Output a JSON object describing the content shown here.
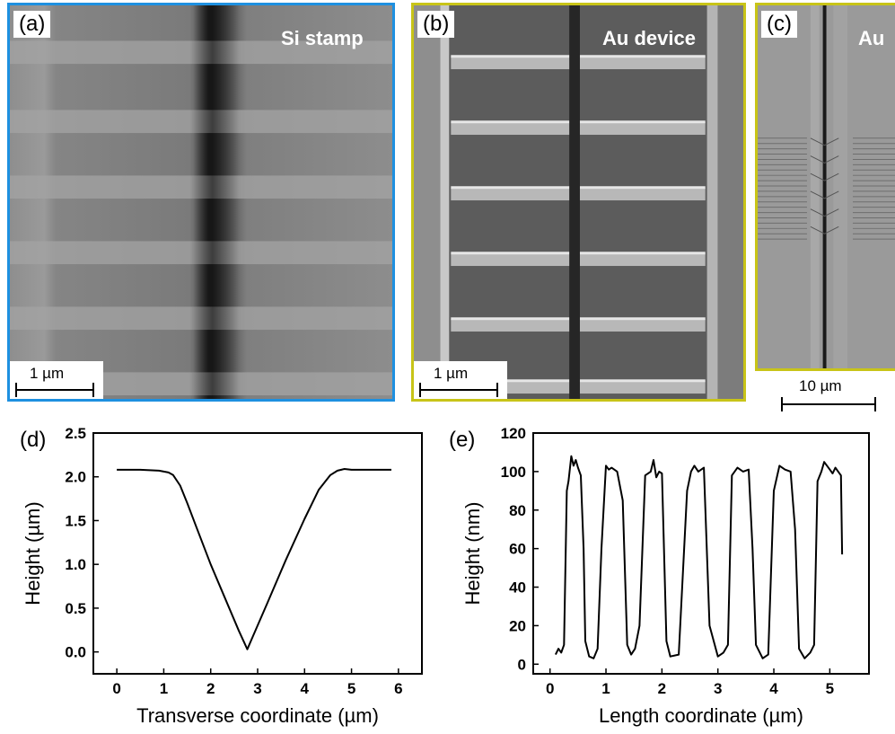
{
  "panels": {
    "a": {
      "label": "(a)",
      "title": "Si stamp",
      "scalebar": "1 µm",
      "border": "#1e90e0"
    },
    "b": {
      "label": "(b)",
      "title": "Au device",
      "scalebar": "1 µm",
      "border": "#c8c418"
    },
    "c": {
      "label": "(c)",
      "title": "Au",
      "scalebar": "10 µm",
      "border": "#c8c418"
    }
  },
  "chart_data": [
    {
      "panel_label": "(d)",
      "type": "line",
      "xlabel": "Transverse coordinate (µm)",
      "ylabel": "Height (µm)",
      "xlim": [
        -0.5,
        6.5
      ],
      "ylim": [
        -0.25,
        2.5
      ],
      "xticks": [
        0,
        1,
        2,
        3,
        4,
        5,
        6
      ],
      "yticks": [
        0.0,
        0.5,
        1.0,
        1.5,
        2.0,
        2.5
      ],
      "ytick_labels": [
        "0.0",
        "0.5",
        "1.0",
        "1.5",
        "2.0",
        "2.5"
      ],
      "series": [
        {
          "x": [
            0.0,
            0.5,
            0.9,
            1.1,
            1.2,
            1.35,
            1.5,
            1.7,
            2.0,
            2.3,
            2.6,
            2.78,
            2.9,
            3.2,
            3.6,
            4.0,
            4.3,
            4.55,
            4.7,
            4.85,
            5.0,
            5.5,
            5.85
          ],
          "y": [
            2.08,
            2.08,
            2.07,
            2.05,
            2.02,
            1.9,
            1.7,
            1.42,
            1.0,
            0.62,
            0.24,
            0.03,
            0.18,
            0.55,
            1.05,
            1.52,
            1.85,
            2.02,
            2.07,
            2.09,
            2.08,
            2.08,
            2.08
          ]
        }
      ]
    },
    {
      "panel_label": "(e)",
      "type": "line",
      "xlabel": "Length coordinate (µm)",
      "ylabel": "Height (nm)",
      "xlim": [
        -0.3,
        5.7
      ],
      "ylim": [
        -5,
        120
      ],
      "xticks": [
        0,
        1,
        2,
        3,
        4,
        5
      ],
      "yticks": [
        0,
        20,
        40,
        60,
        80,
        100,
        120
      ],
      "ytick_labels": [
        "0",
        "20",
        "40",
        "60",
        "80",
        "100",
        "120"
      ],
      "series": [
        {
          "x": [
            0.1,
            0.15,
            0.2,
            0.25,
            0.3,
            0.33,
            0.38,
            0.42,
            0.46,
            0.5,
            0.55,
            0.6,
            0.63,
            0.7,
            0.78,
            0.85,
            0.92,
            1.0,
            1.05,
            1.1,
            1.2,
            1.3,
            1.38,
            1.45,
            1.52,
            1.6,
            1.7,
            1.8,
            1.85,
            1.9,
            1.95,
            2.0,
            2.08,
            2.15,
            2.3,
            2.45,
            2.52,
            2.58,
            2.65,
            2.75,
            2.85,
            3.0,
            3.1,
            3.18,
            3.25,
            3.35,
            3.45,
            3.55,
            3.62,
            3.68,
            3.8,
            3.9,
            4.0,
            4.1,
            4.2,
            4.3,
            4.38,
            4.45,
            4.55,
            4.65,
            4.72,
            4.78,
            4.85,
            4.9,
            5.0,
            5.05,
            5.1,
            5.15,
            5.2,
            5.22
          ],
          "y": [
            5,
            8,
            6,
            10,
            90,
            95,
            108,
            103,
            106,
            102,
            98,
            60,
            12,
            4,
            3,
            8,
            60,
            103,
            101,
            102,
            100,
            85,
            10,
            5,
            8,
            20,
            98,
            100,
            106,
            97,
            100,
            99,
            12,
            4,
            5,
            90,
            100,
            103,
            100,
            102,
            20,
            4,
            6,
            10,
            98,
            102,
            100,
            101,
            60,
            10,
            3,
            5,
            90,
            103,
            101,
            100,
            70,
            8,
            3,
            6,
            10,
            95,
            100,
            105,
            101,
            99,
            102,
            100,
            98,
            57
          ]
        }
      ]
    }
  ]
}
